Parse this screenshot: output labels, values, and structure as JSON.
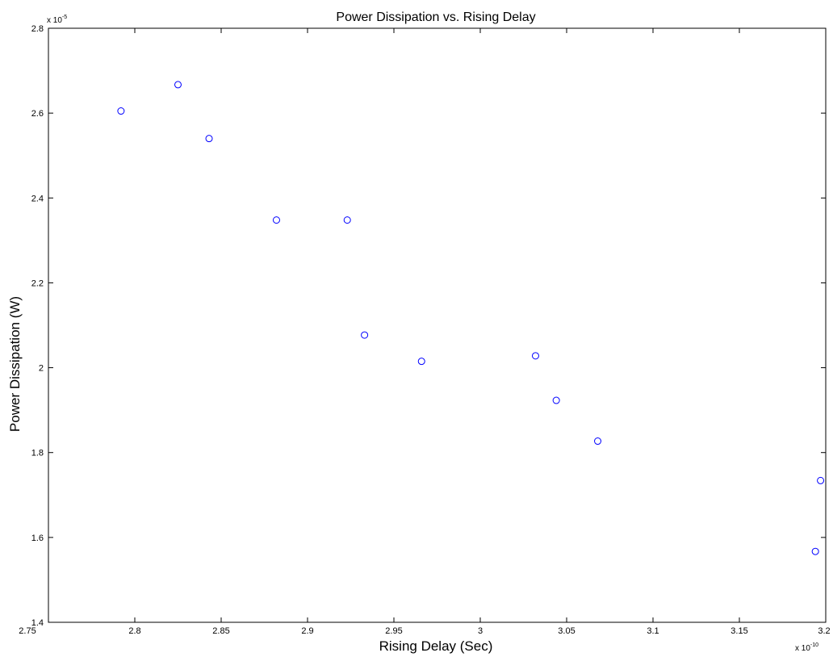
{
  "chart_data": {
    "type": "scatter",
    "title": "Power Dissipation vs. Rising Delay",
    "xlabel": "Rising Delay (Sec)",
    "ylabel": "Power Dissipation (W)",
    "x_multiplier": {
      "base": "x 10",
      "exponent": "-10"
    },
    "y_multiplier": {
      "base": "x 10",
      "exponent": "-5"
    },
    "xlim": [
      2.75,
      3.2
    ],
    "ylim": [
      1.4,
      2.8
    ],
    "x_ticks": [
      2.75,
      2.8,
      2.85,
      2.9,
      2.95,
      3.0,
      3.05,
      3.1,
      3.15,
      3.2
    ],
    "x_tick_labels": [
      "2.75",
      "2.8",
      "2.85",
      "2.9",
      "2.95",
      "3",
      "3.05",
      "3.1",
      "3.15",
      "3.2"
    ],
    "y_ticks": [
      1.4,
      1.6,
      1.8,
      2.0,
      2.2,
      2.4,
      2.6,
      2.8
    ],
    "y_tick_labels": [
      "1.4",
      "1.6",
      "1.8",
      "2",
      "2.2",
      "2.4",
      "2.6",
      "2.8"
    ],
    "grid": false,
    "marker": "circle-open",
    "series": [
      {
        "color": "#0000ff",
        "points": [
          {
            "x": 2.792,
            "y": 2.605
          },
          {
            "x": 2.825,
            "y": 2.667
          },
          {
            "x": 2.843,
            "y": 2.54
          },
          {
            "x": 2.882,
            "y": 2.348
          },
          {
            "x": 2.923,
            "y": 2.348
          },
          {
            "x": 2.933,
            "y": 2.077
          },
          {
            "x": 2.966,
            "y": 2.015
          },
          {
            "x": 3.032,
            "y": 2.028
          },
          {
            "x": 3.044,
            "y": 1.923
          },
          {
            "x": 3.068,
            "y": 1.827
          },
          {
            "x": 3.197,
            "y": 1.734
          },
          {
            "x": 3.194,
            "y": 1.567
          }
        ]
      }
    ]
  }
}
